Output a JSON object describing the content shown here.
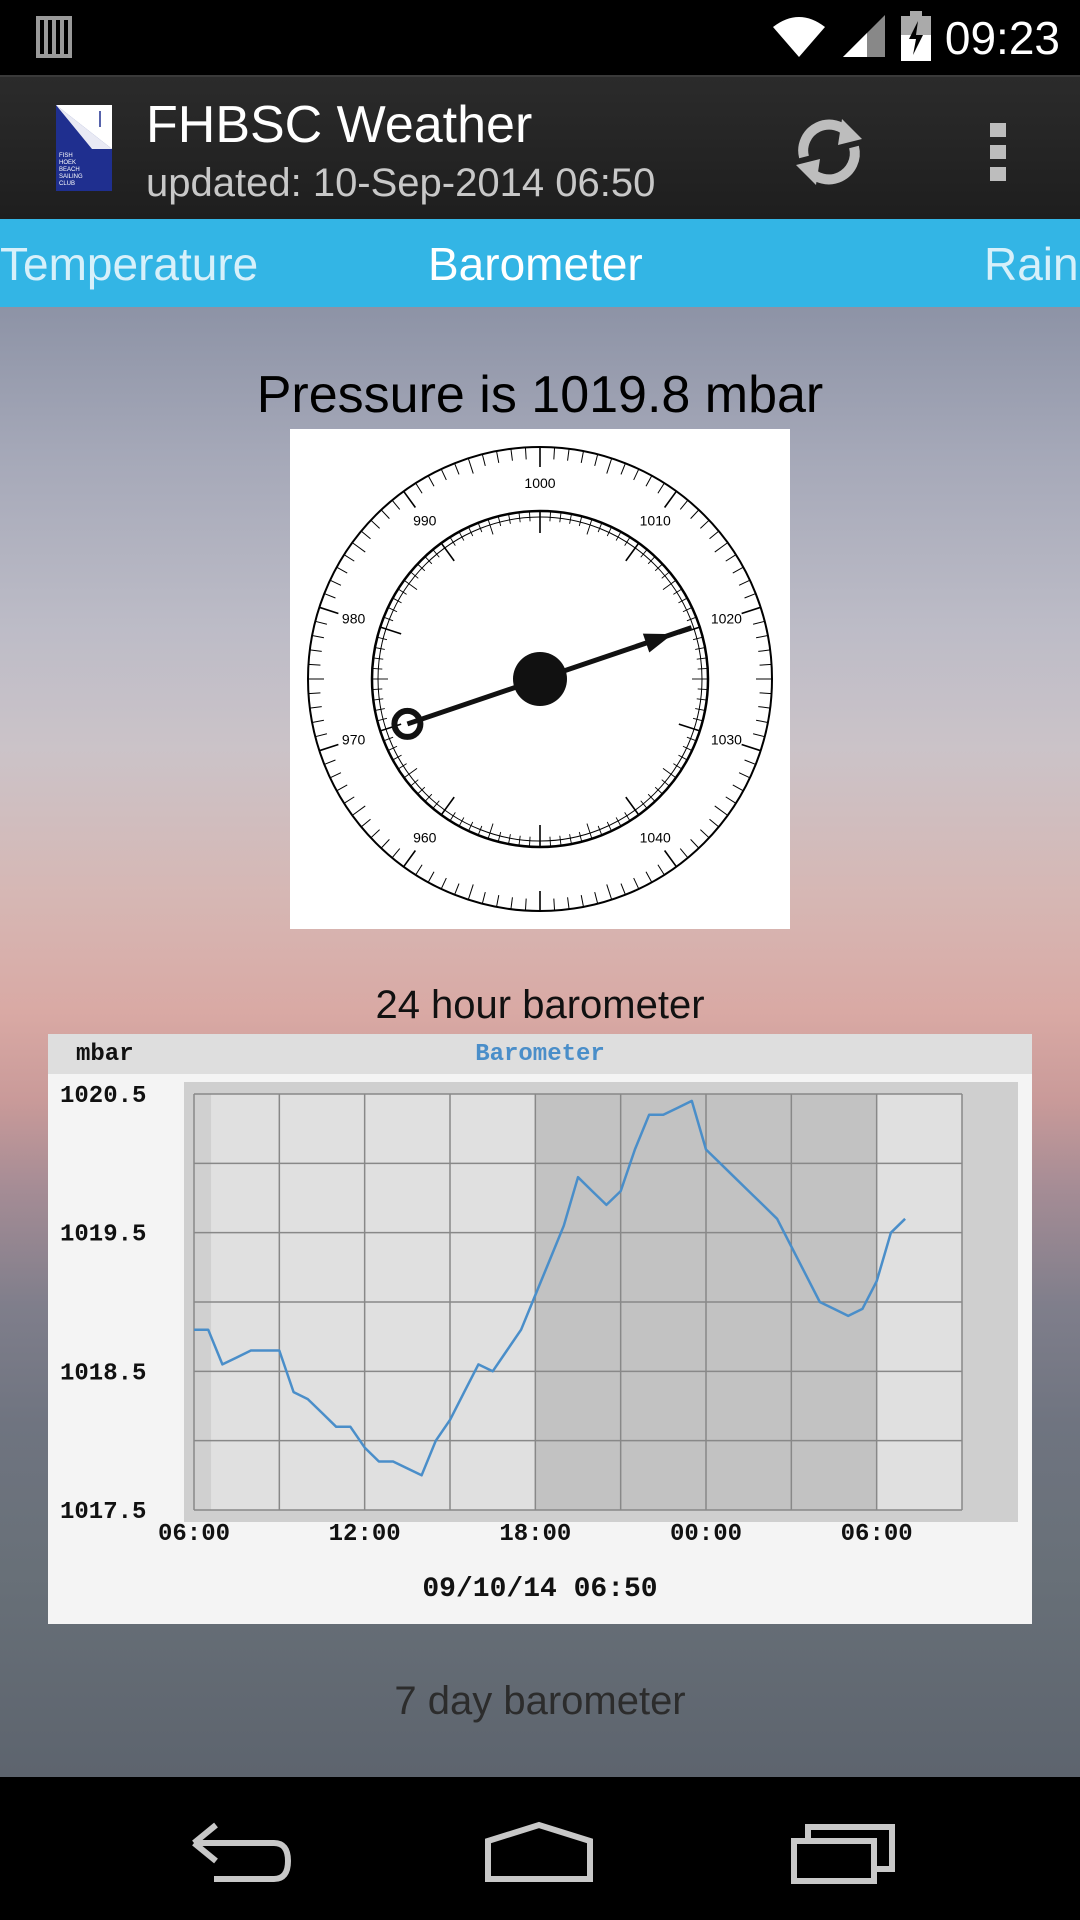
{
  "status_bar": {
    "time": "09:23",
    "icons": [
      "sim-icon",
      "wifi-icon",
      "signal-icon",
      "battery-charging-icon"
    ]
  },
  "action_bar": {
    "title": "FHBSC Weather",
    "subtitle": "updated: 10-Sep-2014 06:50",
    "logo_text": [
      "FISH",
      "HOEK",
      "BEACH",
      "SAILING",
      "CLUB"
    ],
    "logo_colors": {
      "blue": "#1f2f8f",
      "white": "#ffffff"
    },
    "actions": [
      "refresh-icon",
      "overflow-menu-icon"
    ]
  },
  "tabs": [
    {
      "label": "Temperature",
      "selected": false
    },
    {
      "label": "Barometer",
      "selected": true
    },
    {
      "label": "Rain",
      "selected": false
    }
  ],
  "accent_color": "#33b5e5",
  "pressure": {
    "heading": "Pressure is 1019.8 mbar",
    "value": 1019.8,
    "unit": "mbar"
  },
  "gauge": {
    "labels": [
      "1000",
      "1010",
      "1020",
      "1030",
      "1040",
      "960",
      "970",
      "980",
      "990"
    ],
    "range": [
      950,
      1050
    ],
    "needle_value": 1019.8
  },
  "chart_24h": {
    "caption": "24 hour barometer",
    "chart_data": {
      "type": "line",
      "title": "Barometer",
      "ylabel": "mbar",
      "xlabel": "09/10/14 06:50",
      "ylim": [
        1017.5,
        1020.5
      ],
      "yticks": [
        "1020.5",
        "1019.5",
        "1018.5",
        "1017.5"
      ],
      "xticks": [
        "06:00",
        "12:00",
        "18:00",
        "00:00",
        "06:00"
      ],
      "grid": true,
      "series": [
        {
          "color": "#4a8ec9",
          "x": [
            6.0,
            6.5,
            7.0,
            7.5,
            8.0,
            8.5,
            9.0,
            9.5,
            10.0,
            10.5,
            11.0,
            11.5,
            12.0,
            12.5,
            13.0,
            13.5,
            14.0,
            14.5,
            15.0,
            15.5,
            16.0,
            16.5,
            17.0,
            17.5,
            18.0,
            18.5,
            19.0,
            19.5,
            20.0,
            20.5,
            21.0,
            21.5,
            22.0,
            22.5,
            23.0,
            23.5,
            24.0,
            24.5,
            25.0,
            25.5,
            26.0,
            26.5,
            27.0,
            27.5,
            28.0,
            28.5,
            29.0,
            29.5,
            30.0,
            30.5,
            31.0
          ],
          "values": [
            1018.8,
            1018.8,
            1018.55,
            1018.6,
            1018.65,
            1018.65,
            1018.65,
            1018.35,
            1018.3,
            1018.2,
            1018.1,
            1018.1,
            1017.95,
            1017.85,
            1017.85,
            1017.8,
            1017.75,
            1018.0,
            1018.15,
            1018.35,
            1018.55,
            1018.5,
            1018.65,
            1018.8,
            1019.05,
            1019.3,
            1019.55,
            1019.9,
            1019.8,
            1019.7,
            1019.8,
            1020.1,
            1020.35,
            1020.35,
            1020.4,
            1020.45,
            1020.1,
            1020.0,
            1019.9,
            1019.8,
            1019.7,
            1019.6,
            1019.4,
            1019.2,
            1019.0,
            1018.95,
            1018.9,
            1018.95,
            1019.15,
            1019.5,
            1019.6
          ]
        }
      ]
    }
  },
  "chart_7d": {
    "caption": "7 day barometer"
  },
  "nav_bar": {
    "buttons": [
      "back-icon",
      "home-icon",
      "recents-icon"
    ]
  }
}
